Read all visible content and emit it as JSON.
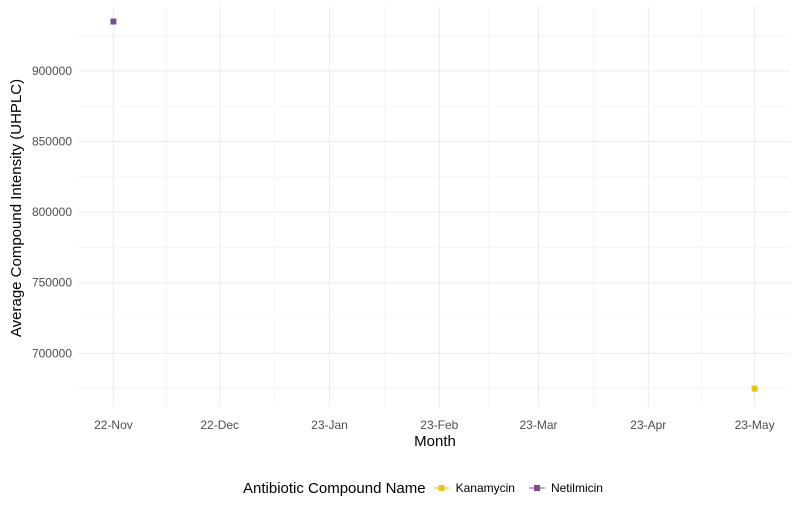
{
  "chart_data": {
    "type": "scatter",
    "title": "",
    "xlabel": "Month",
    "ylabel": "Average Compound Intensity (UHPLC)",
    "x_axis_type": "date",
    "x_ticks": [
      "2022-11-01",
      "2022-12-01",
      "2023-01-01",
      "2023-02-01",
      "2023-03-01",
      "2023-04-01",
      "2023-05-01"
    ],
    "x_tick_labels": [
      "22-Nov",
      "22-Dec",
      "23-Jan",
      "23-Feb",
      "23-Mar",
      "23-Apr",
      "23-May"
    ],
    "xlim": [
      "2022-10-22",
      "2023-05-11"
    ],
    "y_ticks": [
      700000,
      750000,
      800000,
      850000,
      900000
    ],
    "y_tick_labels": [
      "700000",
      "750000",
      "800000",
      "850000",
      "900000"
    ],
    "ylim": [
      662000,
      946000
    ],
    "grid": true,
    "legend": {
      "title": "Antibiotic Compound Name",
      "position": "bottom"
    },
    "series": [
      {
        "name": "Kanamycin",
        "color": "#e6c619",
        "points": [
          {
            "x": "2023-05-01",
            "y": 675000
          }
        ]
      },
      {
        "name": "Netilmicin",
        "color": "#7e4f8f",
        "points": [
          {
            "x": "2022-11-01",
            "y": 935000
          }
        ]
      }
    ]
  }
}
